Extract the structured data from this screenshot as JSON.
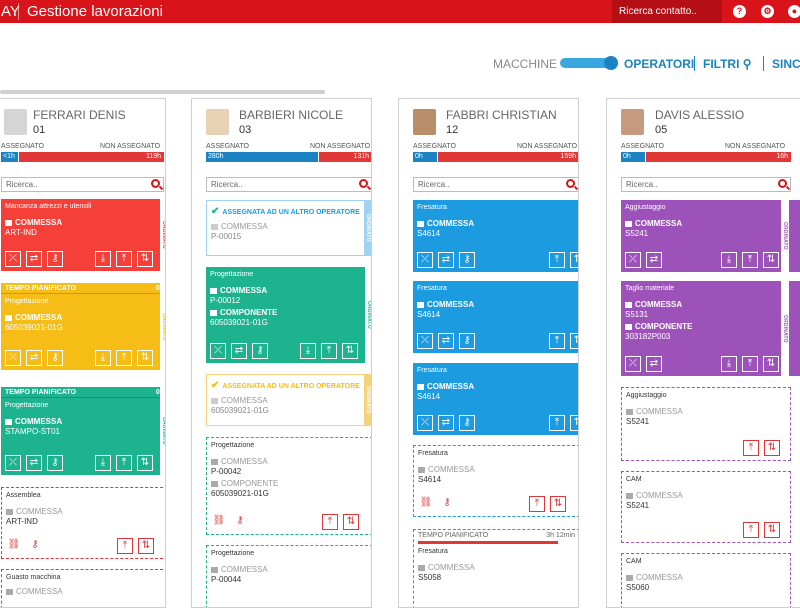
{
  "header": {
    "brand": "AY",
    "title": "Gestione lavorazioni",
    "search_placeholder": "Ricerca contatto..",
    "icons": [
      "help-icon",
      "settings-icon",
      "user-icon"
    ]
  },
  "view": {
    "machines": "MACCHINE",
    "operators": "OPERATORI",
    "filters": "FILTRI",
    "sync": "SINC"
  },
  "labels": {
    "assigned": "ASSEGNATO",
    "not_assigned": "NON ASSEGNATO",
    "search": "Ricerca..",
    "commessa": "COMMESSA",
    "componente": "COMPONENTE",
    "ordinato": "ORDINATO",
    "tempo": "TEMPO PIANIFICATO",
    "other_op": "ASSEGNATA AD UN ALTRO OPERATORE"
  },
  "columns": [
    {
      "name": "FERRARI DENIS",
      "number": "01",
      "assigned": "<1h",
      "not_assigned": "119h",
      "cards": [
        {
          "title": "Mancanza attrezzi e utensili",
          "commessa": "ART-IND"
        },
        {
          "tempo_val": "0h",
          "title": "Progettazione",
          "commessa": "605039021-01G"
        },
        {
          "tempo_val": "0h",
          "title": "Progettazione",
          "commessa": "STAMPO-ST01"
        },
        {
          "title": "Assemblea",
          "commessa": "ART-IND"
        },
        {
          "title": "Guasto macchina",
          "commessa": "COMMESSA"
        }
      ]
    },
    {
      "name": "BARBIERI NICOLE",
      "number": "03",
      "assigned": "280h",
      "not_assigned": "131h",
      "cards": [
        {
          "commessa": "P-00015"
        },
        {
          "title": "Progettazione",
          "commessa": "P-00012",
          "componente": "605039021-01G"
        },
        {
          "commessa": "605039021-01G"
        },
        {
          "title": "Progettazione",
          "commessa": "P-00042",
          "componente": "605039021-01G"
        },
        {
          "title": "Progettazione",
          "commessa": "P-00044"
        }
      ]
    },
    {
      "name": "FABBRI CHRISTIAN",
      "number": "12",
      "assigned": "0h",
      "not_assigned": "159h",
      "cards": [
        {
          "title": "Fresatura",
          "commessa": "S4614"
        },
        {
          "title": "Fresatura",
          "commessa": "S4614"
        },
        {
          "title": "Fresatura",
          "commessa": "S4614"
        },
        {
          "title": "Fresatura",
          "commessa": "S4614"
        },
        {
          "tempo_val": "3h 12min",
          "title": "Fresatura",
          "commessa": "S5058"
        }
      ]
    },
    {
      "name": "DAVIS ALESSIO",
      "number": "05",
      "assigned": "0h",
      "not_assigned": "16h",
      "cards": [
        {
          "title": "Aggiustaggio",
          "commessa": "S5241"
        },
        {
          "title": "Taglio materiale",
          "commessa": "S5131",
          "componente": "303182P003"
        },
        {
          "title": "Aggiustaggio",
          "commessa": "S5241"
        },
        {
          "title": "CAM",
          "commessa": "S5241"
        },
        {
          "title": "CAM",
          "commessa": "S5060"
        }
      ]
    }
  ]
}
